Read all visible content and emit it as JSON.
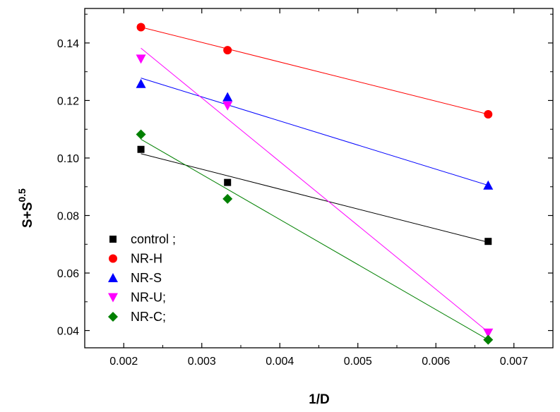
{
  "chart_data": {
    "type": "scatter",
    "title": "",
    "xlabel": "1/D",
    "ylabel": {
      "base": "S+S",
      "sup": "0.5"
    },
    "xlim": [
      0.0015,
      0.0075
    ],
    "ylim": [
      0.034,
      0.152
    ],
    "xticks": [
      0.002,
      0.003,
      0.004,
      0.005,
      0.006,
      0.007
    ],
    "xtick_labels": [
      "0.002",
      "0.003",
      "0.004",
      "0.005",
      "0.006",
      "0.007"
    ],
    "yticks": [
      0.04,
      0.06,
      0.08,
      0.1,
      0.12,
      0.14
    ],
    "ytick_labels": [
      "0.04",
      "0.06",
      "0.08",
      "0.10",
      "0.12",
      "0.14"
    ],
    "legend_position": "bottom-left",
    "series": [
      {
        "name": "control ;",
        "marker": "square",
        "color": "#000000",
        "x": [
          0.00222,
          0.00333,
          0.00667
        ],
        "y": [
          0.103,
          0.0915,
          0.071
        ],
        "fit": {
          "x": [
            0.00222,
            0.00667
          ],
          "y": [
            0.1015,
            0.0707
          ]
        }
      },
      {
        "name": "NR-H",
        "marker": "circle",
        "color": "#ff0000",
        "x": [
          0.00222,
          0.00333,
          0.00667
        ],
        "y": [
          0.1455,
          0.1375,
          0.1152
        ],
        "fit": {
          "x": [
            0.00222,
            0.00667
          ],
          "y": [
            0.1455,
            0.1152
          ]
        }
      },
      {
        "name": "NR-S",
        "marker": "triangle-up",
        "color": "#0000ff",
        "x": [
          0.00222,
          0.00333,
          0.00667
        ],
        "y": [
          0.1258,
          0.1212,
          0.0905
        ],
        "fit": {
          "x": [
            0.00222,
            0.00667
          ],
          "y": [
            0.1278,
            0.0905
          ]
        }
      },
      {
        "name": "NR-U;",
        "marker": "triangle-down",
        "color": "#ff00ff",
        "x": [
          0.00222,
          0.00333,
          0.00667
        ],
        "y": [
          0.1345,
          0.1182,
          0.0392
        ],
        "fit": {
          "x": [
            0.00222,
            0.00667
          ],
          "y": [
            0.1382,
            0.0395
          ]
        }
      },
      {
        "name": "NR-C;",
        "marker": "diamond",
        "color": "#008000",
        "x": [
          0.00222,
          0.00333,
          0.00667
        ],
        "y": [
          0.1082,
          0.0858,
          0.0368
        ],
        "fit": {
          "x": [
            0.00222,
            0.00667
          ],
          "y": [
            0.1065,
            0.0368
          ]
        }
      }
    ]
  }
}
